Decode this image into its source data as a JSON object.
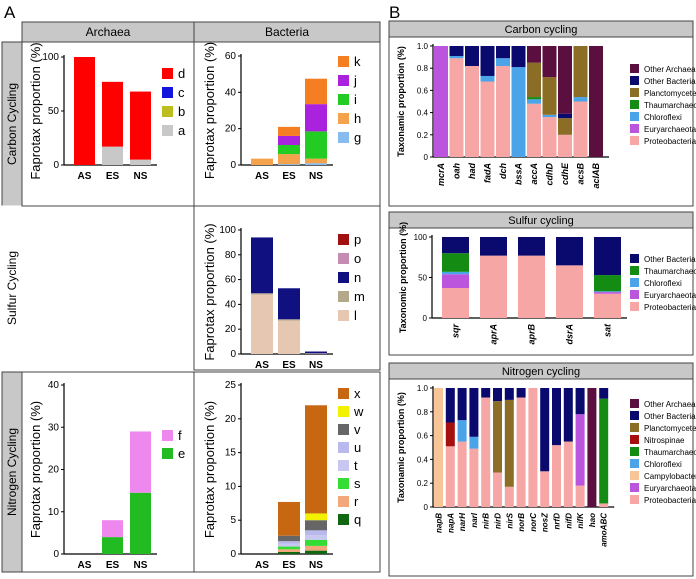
{
  "panel_labels": {
    "a": "A",
    "b": "B"
  },
  "headers": {
    "archaea": "Archaea",
    "bacteria": "Bacteria"
  },
  "row_labels": {
    "carbon": "Carbon Cycling",
    "sulfur": "Sulfur Cycling",
    "nitrogen": "Nitrogen Cycling"
  },
  "colors": {
    "a": "#c8c8c8",
    "b": "#bdbd1e",
    "c": "#1414dd",
    "d": "#ff0000",
    "e": "#22bb22",
    "f": "#ee88ee",
    "g": "#88bbee",
    "h": "#f4a24c",
    "i": "#22cc22",
    "j": "#aa22dd",
    "k": "#f57d22",
    "l": "#e6c7b2",
    "m": "#b3a98a",
    "n": "#101080",
    "o": "#c58bb3",
    "p": "#a01010",
    "q": "#116611",
    "r": "#f2a87a",
    "s": "#33dd33",
    "t": "#c7c7f2",
    "u": "#b9b9ee",
    "v": "#666666",
    "w": "#f2f200",
    "x": "#c86712",
    "other_archaea": "#5a0f3f",
    "other_bacteria": "#0a0a6e",
    "planctomycetes": "#8b6d26",
    "thaumarchaeota": "#148c14",
    "chloroflexi": "#4ba3e8",
    "euryarchaeota": "#bb55dd",
    "proteobacteria": "#f6a7a5",
    "nitrospinae": "#a5100f",
    "campylobacterota": "#f7c597"
  },
  "chart_data": [
    {
      "id": "A_carbon_archaea",
      "type": "bar",
      "stacked": true,
      "categories": [
        "AS",
        "ES",
        "NS"
      ],
      "ylabel": "Faprotax proportion (%)",
      "ylim": [
        0,
        100
      ],
      "yticks": [
        0,
        50,
        100
      ],
      "series": [
        {
          "name": "a",
          "values": [
            0,
            17,
            5
          ]
        },
        {
          "name": "b",
          "values": [
            0,
            0,
            0
          ]
        },
        {
          "name": "c",
          "values": [
            0,
            0,
            0
          ]
        },
        {
          "name": "d",
          "values": [
            100,
            60,
            63
          ]
        }
      ]
    },
    {
      "id": "A_carbon_bacteria",
      "type": "bar",
      "stacked": true,
      "categories": [
        "AS",
        "ES",
        "NS"
      ],
      "ylabel": "Faprotax proportion (%)",
      "ylim": [
        0,
        60
      ],
      "yticks": [
        0,
        20,
        40,
        60
      ],
      "series": [
        {
          "name": "g",
          "values": [
            0,
            0.5,
            1
          ]
        },
        {
          "name": "h",
          "values": [
            3.5,
            5.5,
            2.5
          ]
        },
        {
          "name": "i",
          "values": [
            0,
            5,
            15
          ]
        },
        {
          "name": "j",
          "values": [
            0,
            5,
            15
          ]
        },
        {
          "name": "k",
          "values": [
            0,
            5,
            14
          ]
        }
      ]
    },
    {
      "id": "A_sulfur_bacteria",
      "type": "bar",
      "stacked": true,
      "categories": [
        "AS",
        "ES",
        "NS"
      ],
      "ylabel": "Faprotax proportion (%)",
      "ylim": [
        0,
        100
      ],
      "yticks": [
        0,
        20,
        40,
        60,
        80,
        100
      ],
      "series": [
        {
          "name": "l",
          "values": [
            48,
            27,
            0.5
          ]
        },
        {
          "name": "m",
          "values": [
            1,
            1,
            0
          ]
        },
        {
          "name": "n",
          "values": [
            45,
            25,
            1.5
          ]
        },
        {
          "name": "o",
          "values": [
            0,
            0,
            0
          ]
        },
        {
          "name": "p",
          "values": [
            0,
            0,
            0
          ]
        }
      ]
    },
    {
      "id": "A_nitrogen_archaea",
      "type": "bar",
      "stacked": true,
      "categories": [
        "AS",
        "ES",
        "NS"
      ],
      "ylabel": "Faprotax proportion (%)",
      "ylim": [
        0,
        40
      ],
      "yticks": [
        0,
        10,
        20,
        30,
        40
      ],
      "series": [
        {
          "name": "e",
          "values": [
            0,
            4,
            14.5
          ]
        },
        {
          "name": "f",
          "values": [
            0,
            4,
            14.5
          ]
        }
      ]
    },
    {
      "id": "A_nitrogen_bacteria",
      "type": "bar",
      "stacked": true,
      "categories": [
        "AS",
        "ES",
        "NS"
      ],
      "ylabel": "Faprotax proportion (%)",
      "ylim": [
        0,
        25
      ],
      "yticks": [
        0,
        5,
        10,
        15,
        20,
        25
      ],
      "series": [
        {
          "name": "q",
          "values": [
            0,
            0.3,
            0.5
          ]
        },
        {
          "name": "r",
          "values": [
            0,
            0.4,
            0.7
          ]
        },
        {
          "name": "s",
          "values": [
            0,
            0.4,
            0.9
          ]
        },
        {
          "name": "t",
          "values": [
            0,
            0.4,
            0.7
          ]
        },
        {
          "name": "u",
          "values": [
            0,
            0.4,
            0.7
          ]
        },
        {
          "name": "v",
          "values": [
            0,
            0.8,
            1.5
          ]
        },
        {
          "name": "w",
          "values": [
            0,
            0,
            1
          ]
        },
        {
          "name": "x",
          "values": [
            0,
            5,
            16
          ]
        }
      ]
    },
    {
      "id": "B_carbon",
      "type": "bar",
      "stacked": true,
      "title": "Carbon cycling",
      "categories": [
        "mcrA",
        "oah",
        "had",
        "fadA",
        "dch",
        "bssA",
        "accA",
        "cdhD",
        "cdhE",
        "acsB",
        "acIAB"
      ],
      "ylabel": "Taxonamic proportion (%)",
      "ylim": [
        0,
        1
      ],
      "yticks": [
        0,
        0.2,
        0.4,
        0.6,
        0.8,
        1.0
      ],
      "series": [
        {
          "name": "Proteobacteria",
          "values": [
            0,
            0.89,
            0.82,
            0.68,
            0.82,
            0,
            0.48,
            0.36,
            0.2,
            0.5,
            0
          ]
        },
        {
          "name": "Euryarchaeota",
          "values": [
            1,
            0,
            0,
            0,
            0,
            0,
            0,
            0,
            0,
            0,
            0
          ]
        },
        {
          "name": "Chloroflexi",
          "values": [
            0,
            0.02,
            0,
            0.05,
            0.07,
            0.81,
            0.04,
            0.02,
            0,
            0.04,
            0
          ]
        },
        {
          "name": "Thaumarchaeota",
          "values": [
            0,
            0,
            0,
            0,
            0,
            0,
            0.02,
            0,
            0,
            0,
            0
          ]
        },
        {
          "name": "Planctomycetes",
          "values": [
            0,
            0,
            0,
            0,
            0,
            0,
            0.31,
            0.34,
            0.15,
            0.46,
            0
          ]
        },
        {
          "name": "Other Bacteria",
          "values": [
            0,
            0.09,
            0.18,
            0.27,
            0.11,
            0.19,
            0,
            0,
            0.04,
            0,
            0
          ]
        },
        {
          "name": "Other Archaea",
          "values": [
            0,
            0,
            0,
            0,
            0,
            0,
            0.15,
            0.28,
            0.61,
            0,
            1
          ]
        }
      ]
    },
    {
      "id": "B_sulfur",
      "type": "bar",
      "stacked": true,
      "title": "Sulfur cycling",
      "categories": [
        "sqr",
        "aprA",
        "aprB",
        "dsrA",
        "sat"
      ],
      "ylabel": "Taxonomic proportion (%)",
      "ylim": [
        0,
        1
      ],
      "yticks": [
        0,
        0.5,
        1.0
      ],
      "ytick_labels": [
        "0",
        "50",
        "100"
      ],
      "series": [
        {
          "name": "Proteobacteria",
          "values": [
            0.37,
            0.77,
            0.77,
            0.65,
            0.3
          ]
        },
        {
          "name": "Euryarchaeota",
          "values": [
            0.17,
            0,
            0,
            0,
            0.02
          ]
        },
        {
          "name": "Chloroflexi",
          "values": [
            0.03,
            0,
            0,
            0,
            0.01
          ]
        },
        {
          "name": "Thaumarchaeota",
          "values": [
            0.23,
            0,
            0,
            0,
            0.2
          ]
        },
        {
          "name": "Other Bacteria",
          "values": [
            0.2,
            0.23,
            0.23,
            0.35,
            0.47
          ]
        }
      ]
    },
    {
      "id": "B_nitrogen",
      "type": "bar",
      "stacked": true,
      "title": "Nitrogen cycling",
      "categories": [
        "napB",
        "napA",
        "narH",
        "narI",
        "nirB",
        "nirD",
        "nirS",
        "norB",
        "norC",
        "nosZ",
        "nrfD",
        "nifD",
        "nifK",
        "hao",
        "amoABC"
      ],
      "ylabel": "Taxonamic proportion (%)",
      "ylim": [
        0,
        1
      ],
      "yticks": [
        0,
        0.2,
        0.4,
        0.6,
        0.8,
        1.0
      ],
      "series": [
        {
          "name": "Proteobacteria",
          "values": [
            0,
            0.51,
            0.55,
            0.49,
            0.92,
            0.29,
            0.17,
            0.92,
            1,
            0.3,
            0.52,
            0.55,
            0.18,
            0,
            0.03
          ]
        },
        {
          "name": "Euryarchaeota",
          "values": [
            0,
            0,
            0,
            0,
            0,
            0,
            0,
            0,
            0,
            0,
            0,
            0,
            0.6,
            0,
            0
          ]
        },
        {
          "name": "Campylobacterota",
          "values": [
            1,
            0,
            0,
            0,
            0,
            0,
            0,
            0,
            0,
            0,
            0,
            0,
            0,
            0,
            0
          ]
        },
        {
          "name": "Chloroflexi",
          "values": [
            0,
            0,
            0.18,
            0.1,
            0,
            0,
            0,
            0,
            0,
            0,
            0,
            0,
            0,
            0,
            0
          ]
        },
        {
          "name": "Thaumarchaeota",
          "values": [
            0,
            0,
            0,
            0,
            0,
            0,
            0,
            0,
            0,
            0,
            0,
            0,
            0,
            0,
            0.88
          ]
        },
        {
          "name": "Nitrospinae",
          "values": [
            0,
            0.2,
            0,
            0,
            0,
            0,
            0,
            0,
            0,
            0,
            0,
            0,
            0,
            0,
            0
          ]
        },
        {
          "name": "Planctomycetes",
          "values": [
            0,
            0,
            0,
            0,
            0,
            0.6,
            0.73,
            0,
            0,
            0,
            0,
            0,
            0,
            0,
            0
          ]
        },
        {
          "name": "Other Bacteria",
          "values": [
            0,
            0.29,
            0.27,
            0.41,
            0.08,
            0.11,
            0.1,
            0.08,
            0,
            0.7,
            0.48,
            0.45,
            0.22,
            0,
            0.09
          ]
        },
        {
          "name": "Other Archaea",
          "values": [
            0,
            0,
            0,
            0,
            0,
            0,
            0,
            0,
            0,
            0,
            0,
            0,
            0,
            1,
            0
          ]
        }
      ]
    }
  ],
  "legends": {
    "A_carbon_archaea": [
      "d",
      "c",
      "b",
      "a"
    ],
    "A_carbon_bacteria": [
      "k",
      "j",
      "i",
      "h",
      "g"
    ],
    "A_sulfur_bacteria": [
      "p",
      "o",
      "n",
      "m",
      "l"
    ],
    "A_nitrogen_archaea": [
      "f",
      "e"
    ],
    "A_nitrogen_bacteria": [
      "x",
      "w",
      "v",
      "u",
      "t",
      "s",
      "r",
      "q"
    ],
    "B_carbon": [
      "Other Archaea",
      "Other Bacteria",
      "Planctomycetes",
      "Thaumarchaeota",
      "Chloroflexi",
      "Euryarchaeota",
      "Proteobacteria"
    ],
    "B_sulfur": [
      "Other Bacteria",
      "Thaumarchaeota",
      "Chloroflexi",
      "Euryarchaeota",
      "Proteobacteria"
    ],
    "B_nitrogen": [
      "Other Archaea",
      "Other Bacteria",
      "Planctomycetes",
      "Nitrospinae",
      "Thaumarchaeota",
      "Chloroflexi",
      "Campylobacterota",
      "Euryarchaeota",
      "Proteobacteria"
    ]
  }
}
